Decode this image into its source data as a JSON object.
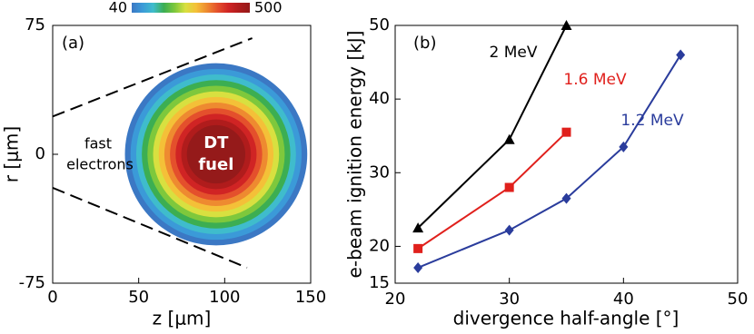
{
  "chart_data": [
    {
      "type": "contour",
      "panel_label": "(a)",
      "xlabel": "z [μm]",
      "ylabel": "r [μm]",
      "xlim": [
        0,
        150
      ],
      "ylim": [
        -75,
        75
      ],
      "xticks": [
        0,
        50,
        100,
        150
      ],
      "yticks": [
        75,
        0,
        -75
      ],
      "center": [
        95,
        0
      ],
      "radius": 53,
      "core_radius": 17,
      "ring_colors": [
        "#3b78c4",
        "#3b9ad8",
        "#3fbccc",
        "#3cae52",
        "#7ec83c",
        "#d8e040",
        "#f4c038",
        "#ee8a30",
        "#e4502c",
        "#d02424",
        "#b01c1c",
        "#951a1a"
      ],
      "colorbar": {
        "ticks": [
          40,
          500
        ]
      },
      "lines": [
        {
          "z": [
            0,
            116
          ],
          "r": [
            22,
            67.6
          ]
        },
        {
          "z": [
            0,
            113
          ],
          "r": [
            -19.5,
            -66
          ]
        }
      ],
      "annotations": {
        "beam": [
          "fast",
          "electrons"
        ],
        "target": [
          "DT",
          "fuel"
        ]
      }
    },
    {
      "type": "line",
      "panel_label": "(b)",
      "xlabel": "divergence half-angle [°]",
      "ylabel": "e-beam ignition energy [kJ]",
      "xlim": [
        20,
        50
      ],
      "ylim": [
        15,
        50
      ],
      "xticks": [
        20,
        30,
        40,
        50
      ],
      "yticks": [
        15,
        20,
        30,
        40,
        50
      ],
      "series": [
        {
          "name": "2 MeV",
          "color": "#000000",
          "marker": "triangle",
          "x": [
            22,
            30,
            35
          ],
          "values": [
            22.5,
            34.5,
            50
          ]
        },
        {
          "name": "1.6 MeV",
          "color": "#e0201c",
          "marker": "square",
          "x": [
            22,
            30,
            35
          ],
          "values": [
            19.7,
            28,
            35.5
          ]
        },
        {
          "name": "1.2 MeV",
          "color": "#2a3c9c",
          "marker": "diamond",
          "x": [
            22,
            30,
            35,
            40,
            45
          ],
          "values": [
            17.1,
            22.2,
            26.5,
            33.5,
            46
          ]
        }
      ]
    }
  ]
}
